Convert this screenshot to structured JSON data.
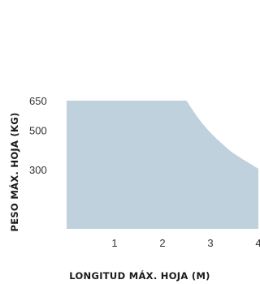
{
  "chart_data": {
    "type": "area",
    "xlabel": "LONGITUD MÁX. HOJA (M)",
    "ylabel": "PESO MÁX. HOJA (KG)",
    "xlim": [
      0,
      4
    ],
    "ylim": [
      0,
      650
    ],
    "x_ticks": [
      1,
      2,
      3,
      4
    ],
    "y_ticks": [
      300,
      500,
      650
    ],
    "series": [
      {
        "x": [
          0,
          2.5,
          2.75,
          3.0,
          3.25,
          3.5,
          4.0
        ],
        "values": [
          650,
          650,
          560,
          488,
          430,
          380,
          305
        ]
      }
    ],
    "fill_color": "#bfd1dd",
    "grid": false
  }
}
